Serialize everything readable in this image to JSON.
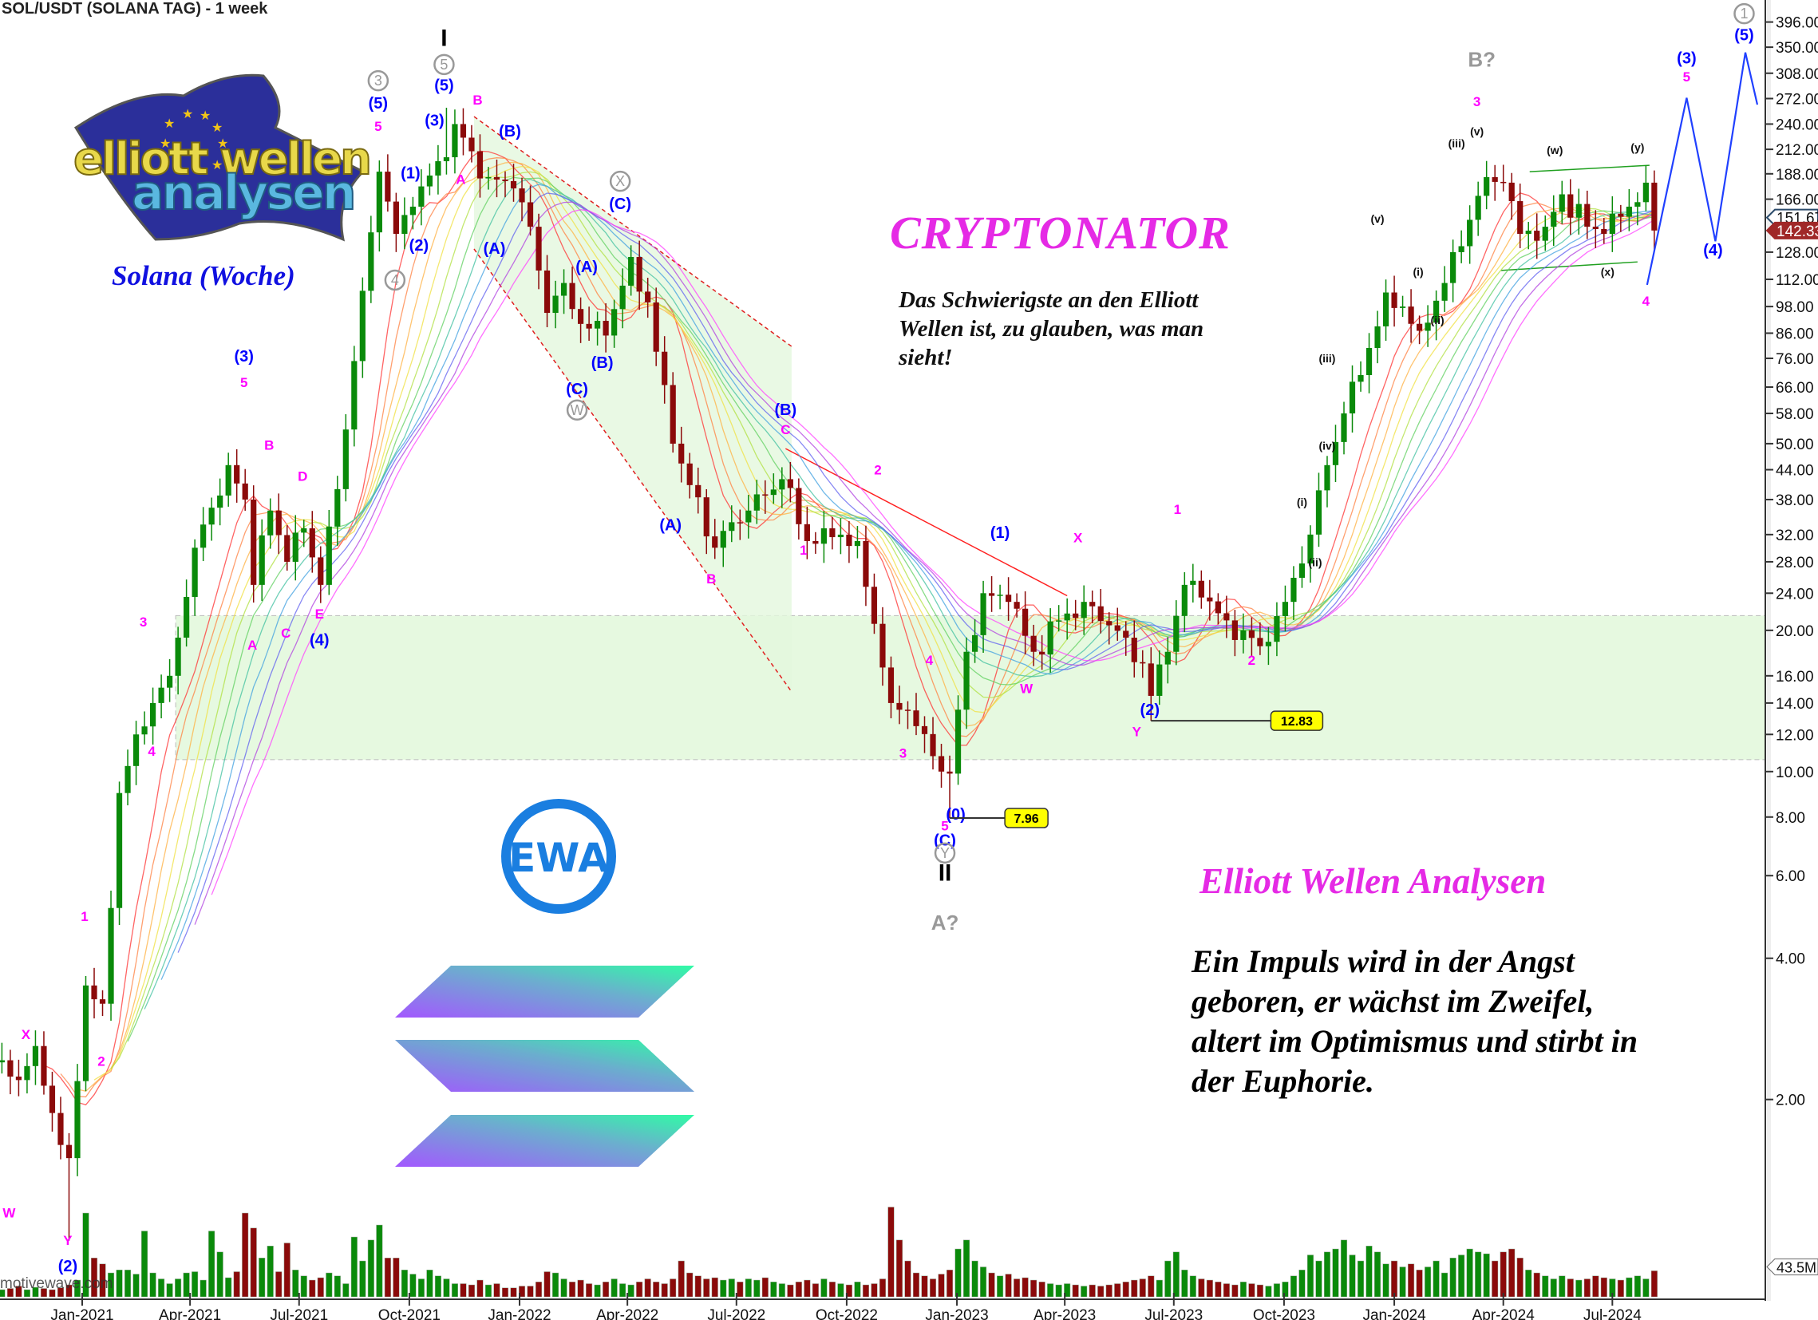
{
  "header": {
    "title": "SOL/USDT (SOLANA TAG) - 1 week"
  },
  "logo": {
    "line1": "elliott wellen",
    "line2": "analysen",
    "flag_color": "#2b2f9a",
    "text1_color": "#e8d84a",
    "text2_color": "#5ab8e0"
  },
  "annotations": {
    "subtitle": "Solana (Woche)",
    "brand": "CRYPTONATOR",
    "quote_short": "Das Schwierigste an den Elliott Wellen ist, zu glauben, was man sieht!",
    "brand2": "Elliott Wellen Analysen",
    "quote_long": "Ein Impuls wird in der Angst geboren, er wächst im Zweifel, altert im Optimismus und stirbt in der Euphorie.",
    "ewa_logo": "EWA",
    "watermark": "motivewave.com"
  },
  "colors": {
    "up": "#0a8a0a",
    "down": "#8b0a0a",
    "wave_blue": "#0000ff",
    "wave_pink": "#ff00ff",
    "zone": "#e6f9e0",
    "accent_pink": "#e52ae5"
  },
  "chart_data": {
    "type": "candlestick",
    "timeframe": "1 week",
    "y_scale": "log",
    "ylim": [
      0.8,
      420
    ],
    "y_ticks": [
      "396.00",
      "350.00",
      "308.00",
      "272.00",
      "240.00",
      "212.00",
      "188.00",
      "166.00",
      "128.00",
      "112.00",
      "98.00",
      "86.00",
      "76.00",
      "66.00",
      "58.00",
      "50.00",
      "44.00",
      "38.00",
      "32.00",
      "28.00",
      "24.00",
      "20.00",
      "16.00",
      "14.00",
      "12.00",
      "10.00",
      "8.00",
      "6.00",
      "4.00",
      "2.00"
    ],
    "x_ticks": [
      "Jan-2021",
      "Apr-2021",
      "Jul-2021",
      "Oct-2021",
      "Jan-2022",
      "Apr-2022",
      "Jul-2022",
      "Oct-2022",
      "Jan-2023",
      "Apr-2023",
      "Jul-2023",
      "Oct-2023",
      "Jan-2024",
      "Apr-2024",
      "Jul-2024"
    ],
    "x_tick_dates": [
      "2021-01-01",
      "2021-04-01",
      "2021-07-01",
      "2021-10-01",
      "2022-01-01",
      "2022-04-01",
      "2022-07-01",
      "2022-10-01",
      "2023-01-01",
      "2023-04-01",
      "2023-07-01",
      "2023-10-01",
      "2024-01-01",
      "2024-04-01",
      "2024-07-01"
    ],
    "first_week": "2020-10-19",
    "close_anchors": [
      [
        "2020-10-19",
        2.4
      ],
      [
        "2020-11-09",
        2.2
      ],
      [
        "2020-11-23",
        2.6
      ],
      [
        "2020-12-14",
        1.6
      ],
      [
        "2020-12-21",
        1.5
      ],
      [
        "2021-01-04",
        3.5
      ],
      [
        "2021-01-18",
        3.2
      ],
      [
        "2021-02-01",
        9
      ],
      [
        "2021-02-15",
        12
      ],
      [
        "2021-03-01",
        14
      ],
      [
        "2021-03-15",
        16
      ],
      [
        "2021-04-05",
        30
      ],
      [
        "2021-05-03",
        45
      ],
      [
        "2021-05-17",
        38
      ],
      [
        "2021-05-24",
        25
      ],
      [
        "2021-06-07",
        36
      ],
      [
        "2021-06-21",
        28
      ],
      [
        "2021-07-05",
        33
      ],
      [
        "2021-07-19",
        25
      ],
      [
        "2021-08-02",
        40
      ],
      [
        "2021-08-16",
        75
      ],
      [
        "2021-09-06",
        190
      ],
      [
        "2021-09-20",
        140
      ],
      [
        "2021-10-04",
        160
      ],
      [
        "2021-10-25",
        200
      ],
      [
        "2021-11-08",
        240
      ],
      [
        "2021-11-22",
        210
      ],
      [
        "2021-12-06",
        185
      ],
      [
        "2021-12-27",
        175
      ],
      [
        "2022-01-10",
        145
      ],
      [
        "2022-01-24",
        95
      ],
      [
        "2022-02-07",
        110
      ],
      [
        "2022-02-21",
        90
      ],
      [
        "2022-03-14",
        85
      ],
      [
        "2022-04-04",
        125
      ],
      [
        "2022-04-18",
        100
      ],
      [
        "2022-05-09",
        50
      ],
      [
        "2022-06-13",
        30
      ],
      [
        "2022-06-27",
        34
      ],
      [
        "2022-07-11",
        36
      ],
      [
        "2022-08-08",
        42
      ],
      [
        "2022-08-29",
        31
      ],
      [
        "2022-09-12",
        33
      ],
      [
        "2022-10-10",
        31
      ],
      [
        "2022-11-07",
        14
      ],
      [
        "2022-11-21",
        13.5
      ],
      [
        "2022-12-19",
        10
      ],
      [
        "2022-12-26",
        9.9
      ],
      [
        "2023-01-09",
        18
      ],
      [
        "2023-01-23",
        24
      ],
      [
        "2023-02-13",
        23
      ],
      [
        "2023-03-06",
        18
      ],
      [
        "2023-03-27",
        21
      ],
      [
        "2023-04-17",
        23
      ],
      [
        "2023-05-08",
        20.5
      ],
      [
        "2023-06-05",
        17
      ],
      [
        "2023-06-12",
        14.5
      ],
      [
        "2023-06-26",
        18
      ],
      [
        "2023-07-10",
        25
      ],
      [
        "2023-07-24",
        23.5
      ],
      [
        "2023-08-14",
        21
      ],
      [
        "2023-09-11",
        18.5
      ],
      [
        "2023-10-02",
        23
      ],
      [
        "2023-10-23",
        32
      ],
      [
        "2023-11-06",
        45
      ],
      [
        "2023-11-20",
        58
      ],
      [
        "2023-12-04",
        70
      ],
      [
        "2023-12-25",
        105
      ],
      [
        "2024-01-08",
        98
      ],
      [
        "2024-01-22",
        87
      ],
      [
        "2024-02-12",
        110
      ],
      [
        "2024-03-04",
        150
      ],
      [
        "2024-03-18",
        185
      ],
      [
        "2024-04-01",
        180
      ],
      [
        "2024-04-15",
        140
      ],
      [
        "2024-05-06",
        145
      ],
      [
        "2024-05-20",
        170
      ],
      [
        "2024-06-10",
        145
      ],
      [
        "2024-06-24",
        140
      ],
      [
        "2024-07-15",
        160
      ],
      [
        "2024-07-29",
        180
      ],
      [
        "2024-08-05",
        142.33
      ]
    ],
    "extremes": [
      [
        "2021-11-01",
        "high",
        260
      ],
      [
        "2022-12-26",
        "low",
        7.96
      ],
      [
        "2023-06-12",
        "low",
        12.83
      ],
      [
        "2020-12-21",
        "low",
        1.0
      ]
    ],
    "volume_millions": [
      15,
      12,
      14,
      18,
      12,
      16,
      14,
      12,
      15,
      20,
      28,
      140,
      65,
      55,
      40,
      45,
      45,
      38,
      110,
      40,
      30,
      22,
      30,
      40,
      42,
      28,
      110,
      75,
      32,
      42,
      140,
      115,
      65,
      85,
      42,
      90,
      45,
      35,
      28,
      32,
      40,
      35,
      22,
      100,
      60,
      95,
      120,
      65,
      65,
      45,
      38,
      30,
      45,
      35,
      30,
      22,
      22,
      20,
      28,
      20,
      22,
      15,
      15,
      18,
      18,
      25,
      42,
      40,
      30,
      25,
      28,
      22,
      20,
      25,
      30,
      22,
      20,
      25,
      30,
      25,
      22,
      30,
      60,
      40,
      35,
      30,
      32,
      28,
      30,
      25,
      30,
      28,
      32,
      25,
      22,
      20,
      25,
      28,
      22,
      30,
      25,
      22,
      20,
      25,
      20,
      22,
      30,
      150,
      95,
      60,
      40,
      35,
      30,
      38,
      45,
      80,
      95,
      60,
      50,
      40,
      35,
      38,
      30,
      32,
      28,
      25,
      22,
      20,
      22,
      20,
      18,
      20,
      18,
      20,
      22,
      25,
      28,
      30,
      35,
      28,
      60,
      75,
      45,
      35,
      30,
      28,
      25,
      22,
      20,
      25,
      22,
      20,
      18,
      22,
      25,
      35,
      45,
      70,
      60,
      75,
      80,
      95,
      70,
      60,
      85,
      75,
      55,
      60,
      50,
      55,
      45,
      50,
      60,
      40,
      65,
      70,
      80,
      75,
      72,
      60,
      75,
      80,
      65,
      45,
      40,
      35,
      30,
      35,
      30,
      28,
      30,
      35,
      32,
      30,
      28,
      32,
      35,
      30,
      43.5
    ],
    "volume_label": "43.5M",
    "price_tags": [
      {
        "value": "151.67",
        "price": 151.67,
        "style": "outline"
      },
      {
        "value": "142.33",
        "price": 142.33,
        "style": "filled"
      }
    ],
    "level_boxes": [
      {
        "text": "7.96",
        "date_from": "2022-12-26",
        "date_to": "2023-02-10",
        "price": 7.96
      },
      {
        "text": "12.83",
        "date_from": "2023-06-12",
        "date_to": "2023-09-20",
        "price": 12.83
      }
    ],
    "support_zone": {
      "date_from": "2021-03-20",
      "price_low": 10.6,
      "price_high": 21.5
    },
    "channel_lines": [
      {
        "from": [
          "2021-11-24",
          249
        ],
        "to": [
          "2022-08-16",
          80.6
        ],
        "style": "dashed-red"
      },
      {
        "from": [
          "2021-11-24",
          130
        ],
        "to": [
          "2022-08-16",
          14.8
        ],
        "style": "dashed-red"
      },
      {
        "from": [
          "2022-08-11",
          48.8
        ],
        "to": [
          "2023-04-03",
          23.7
        ],
        "style": "solid-red"
      },
      {
        "from": [
          "2024-04-23",
          190
        ],
        "to": [
          "2024-08-01",
          196
        ],
        "style": "solid-green"
      },
      {
        "from": [
          "2024-03-30",
          117
        ],
        "to": [
          "2024-07-22",
          122
        ],
        "style": "solid-green"
      }
    ],
    "projection": [
      [
        "2024-07-30",
        109
      ],
      [
        "2024-09-01",
        273
      ],
      [
        "2024-09-25",
        135
      ],
      [
        "2024-10-20",
        341
      ],
      [
        "2024-10-30",
        264
      ]
    ],
    "wave_labels": [
      [
        "W",
        "2020-11-01",
        1.12,
        "pink"
      ],
      [
        "X",
        "2020-11-15",
        2.69,
        "pink"
      ],
      [
        "Y",
        "2020-12-20",
        0.98,
        "pink"
      ],
      [
        "(2)",
        "2020-12-20",
        0.86,
        "blue"
      ],
      [
        "1",
        "2021-01-03",
        4.8,
        "pink"
      ],
      [
        "2",
        "2021-01-17",
        2.36,
        "pink"
      ],
      [
        "3",
        "2021-02-21",
        20.4,
        "pink"
      ],
      [
        "4",
        "2021-02-28",
        10.8,
        "pink"
      ],
      [
        "(3)",
        "2021-05-16",
        74.8,
        "blue"
      ],
      [
        "5",
        "2021-05-16",
        66,
        "pink"
      ],
      [
        "A",
        "2021-05-23",
        18.2,
        "pink"
      ],
      [
        "B",
        "2021-06-06",
        48.5,
        "pink"
      ],
      [
        "C",
        "2021-06-20",
        19.3,
        "pink"
      ],
      [
        "D",
        "2021-07-04",
        41.7,
        "pink"
      ],
      [
        "E",
        "2021-07-18",
        21.2,
        "pink"
      ],
      [
        "(4)",
        "2021-07-18",
        18.6,
        "blue"
      ],
      [
        "3",
        "2021-09-05",
        290,
        "gray-circle"
      ],
      [
        "(5)",
        "2021-09-05",
        259,
        "blue"
      ],
      [
        "5",
        "2021-09-05",
        232,
        "pink"
      ],
      [
        "4",
        "2021-09-19",
        109,
        "gray-circle"
      ],
      [
        "(1)",
        "2021-10-02",
        184,
        "blue"
      ],
      [
        "(2)",
        "2021-10-09",
        129,
        "blue"
      ],
      [
        "(3)",
        "2021-10-22",
        238,
        "blue"
      ],
      [
        "I",
        "2021-10-30",
        352,
        "black"
      ],
      [
        "5",
        "2021-10-30",
        314,
        "gray-circle"
      ],
      [
        "(5)",
        "2021-10-30",
        283,
        "blue"
      ],
      [
        "A",
        "2021-11-13",
        179,
        "pink"
      ],
      [
        "B",
        "2021-11-27",
        264,
        "pink"
      ],
      [
        "(A)",
        "2021-12-11",
        127,
        "blue"
      ],
      [
        "(B)",
        "2021-12-24",
        226,
        "blue"
      ],
      [
        "(C)",
        "2022-02-18",
        63.7,
        "blue"
      ],
      [
        "W",
        "2022-02-18",
        57.6,
        "gray-circle"
      ],
      [
        "(A)",
        "2022-02-26",
        116,
        "blue"
      ],
      [
        "(B)",
        "2022-03-11",
        72.5,
        "blue"
      ],
      [
        "X",
        "2022-03-26",
        177,
        "gray-circle"
      ],
      [
        "(C)",
        "2022-03-26",
        158,
        "blue"
      ],
      [
        "(A)",
        "2022-05-07",
        32.7,
        "blue"
      ],
      [
        "B",
        "2022-06-10",
        25.2,
        "pink"
      ],
      [
        "(B)",
        "2022-08-11",
        57.6,
        "blue"
      ],
      [
        "C",
        "2022-08-11",
        52.4,
        "pink"
      ],
      [
        "1",
        "2022-08-26",
        29,
        "pink"
      ],
      [
        "2",
        "2022-10-27",
        43,
        "pink"
      ],
      [
        "3",
        "2022-11-17",
        10.7,
        "pink"
      ],
      [
        "4",
        "2022-12-09",
        16.9,
        "pink"
      ],
      [
        "(0)",
        "2022-12-31",
        7.9,
        "blue"
      ],
      [
        "5",
        "2022-12-22",
        7.5,
        "pink"
      ],
      [
        "(C)",
        "2022-12-22",
        6.95,
        "blue"
      ],
      [
        "Y",
        "2022-12-22",
        6.55,
        "gray-circle"
      ],
      [
        "II",
        "2022-12-22",
        5.85,
        "black"
      ],
      [
        "A?",
        "2022-12-22",
        4.6,
        "gray"
      ],
      [
        "(1)",
        "2023-02-06",
        31.5,
        "blue"
      ],
      [
        "W",
        "2023-02-28",
        14.7,
        "pink"
      ],
      [
        "X",
        "2023-04-12",
        30.8,
        "pink"
      ],
      [
        "Y",
        "2023-05-31",
        11.9,
        "pink"
      ],
      [
        "(2)",
        "2023-06-11",
        13.2,
        "blue"
      ],
      [
        "1",
        "2023-07-04",
        35.4,
        "pink"
      ],
      [
        "2",
        "2023-09-04",
        16.9,
        "pink"
      ],
      [
        "(i)",
        "2023-10-16",
        36.8,
        "black-small"
      ],
      [
        "(ii)",
        "2023-10-27",
        27.4,
        "black-small"
      ],
      [
        "(iii)",
        "2023-11-06",
        74.6,
        "black-small"
      ],
      [
        "(iv)",
        "2023-11-06",
        48.5,
        "black-small"
      ],
      [
        "(v)",
        "2023-12-18",
        148,
        "black-small"
      ],
      [
        "(i)",
        "2024-01-21",
        114,
        "black-small"
      ],
      [
        "(ii)",
        "2024-02-06",
        90,
        "black-small"
      ],
      [
        "(iii)",
        "2024-02-22",
        214,
        "black-small"
      ],
      [
        "3",
        "2024-03-10",
        262,
        "pink"
      ],
      [
        "(v)",
        "2024-03-10",
        227,
        "black-small"
      ],
      [
        "B?",
        "2024-03-14",
        318,
        "gray"
      ],
      [
        "(w)",
        "2024-05-14",
        207,
        "black-small"
      ],
      [
        "(x)",
        "2024-06-27",
        114,
        "black-small"
      ],
      [
        "(y)",
        "2024-07-22",
        210,
        "black-small"
      ],
      [
        "4",
        "2024-07-29",
        98.5,
        "pink"
      ],
      [
        "(3)",
        "2024-09-01",
        323,
        "blue"
      ],
      [
        "5",
        "2024-09-01",
        296,
        "pink"
      ],
      [
        "(4)",
        "2024-09-23",
        126,
        "blue"
      ],
      [
        "(5)",
        "2024-10-19",
        362,
        "blue"
      ],
      [
        "1",
        "2024-10-19",
        403,
        "gray-circle"
      ]
    ]
  }
}
